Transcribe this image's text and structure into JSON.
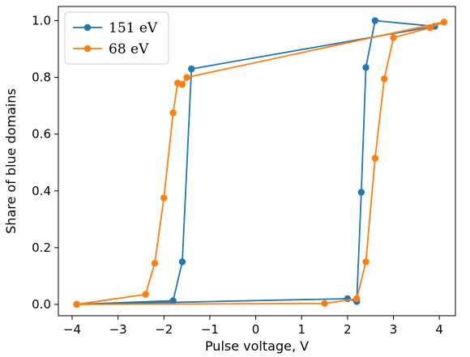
{
  "chart_data": {
    "type": "line",
    "xlabel": "Pulse voltage, V",
    "ylabel": "Share of blue domains",
    "xlim": [
      -4.3,
      4.35
    ],
    "ylim": [
      -0.04,
      1.05
    ],
    "xticks": [
      -4,
      -3,
      -2,
      -1,
      0,
      1,
      2,
      3,
      4
    ],
    "xtick_labels": [
      "−4",
      "−3",
      "−2",
      "−1",
      "0",
      "1",
      "2",
      "3",
      "4"
    ],
    "yticks": [
      0.0,
      0.2,
      0.4,
      0.6,
      0.8,
      1.0
    ],
    "ytick_labels": [
      "0.0",
      "0.2",
      "0.4",
      "0.6",
      "0.8",
      "1.0"
    ],
    "grid": false,
    "legend_position": "top-left",
    "series": [
      {
        "name": "151 eV",
        "color": "#1f77b4",
        "x": [
          -3.9,
          -1.8,
          -1.6,
          -1.4,
          3.9,
          2.6,
          2.4,
          2.3,
          2.2,
          2.0,
          -3.9
        ],
        "y": [
          0.0,
          0.013,
          0.15,
          0.83,
          0.98,
          1.0,
          0.835,
          0.395,
          0.01,
          0.02,
          0.0
        ]
      },
      {
        "name": "68 eV",
        "color": "#ff7f0e",
        "x": [
          -3.9,
          -2.4,
          -2.2,
          -2.0,
          -1.8,
          -1.7,
          -1.6,
          -1.5,
          4.1,
          3.8,
          3.0,
          2.8,
          2.6,
          2.4,
          2.2,
          1.5,
          -3.9
        ],
        "y": [
          0.0,
          0.035,
          0.145,
          0.375,
          0.675,
          0.78,
          0.775,
          0.8,
          0.995,
          0.975,
          0.94,
          0.795,
          0.515,
          0.15,
          0.02,
          0.003,
          0.0
        ]
      }
    ]
  }
}
